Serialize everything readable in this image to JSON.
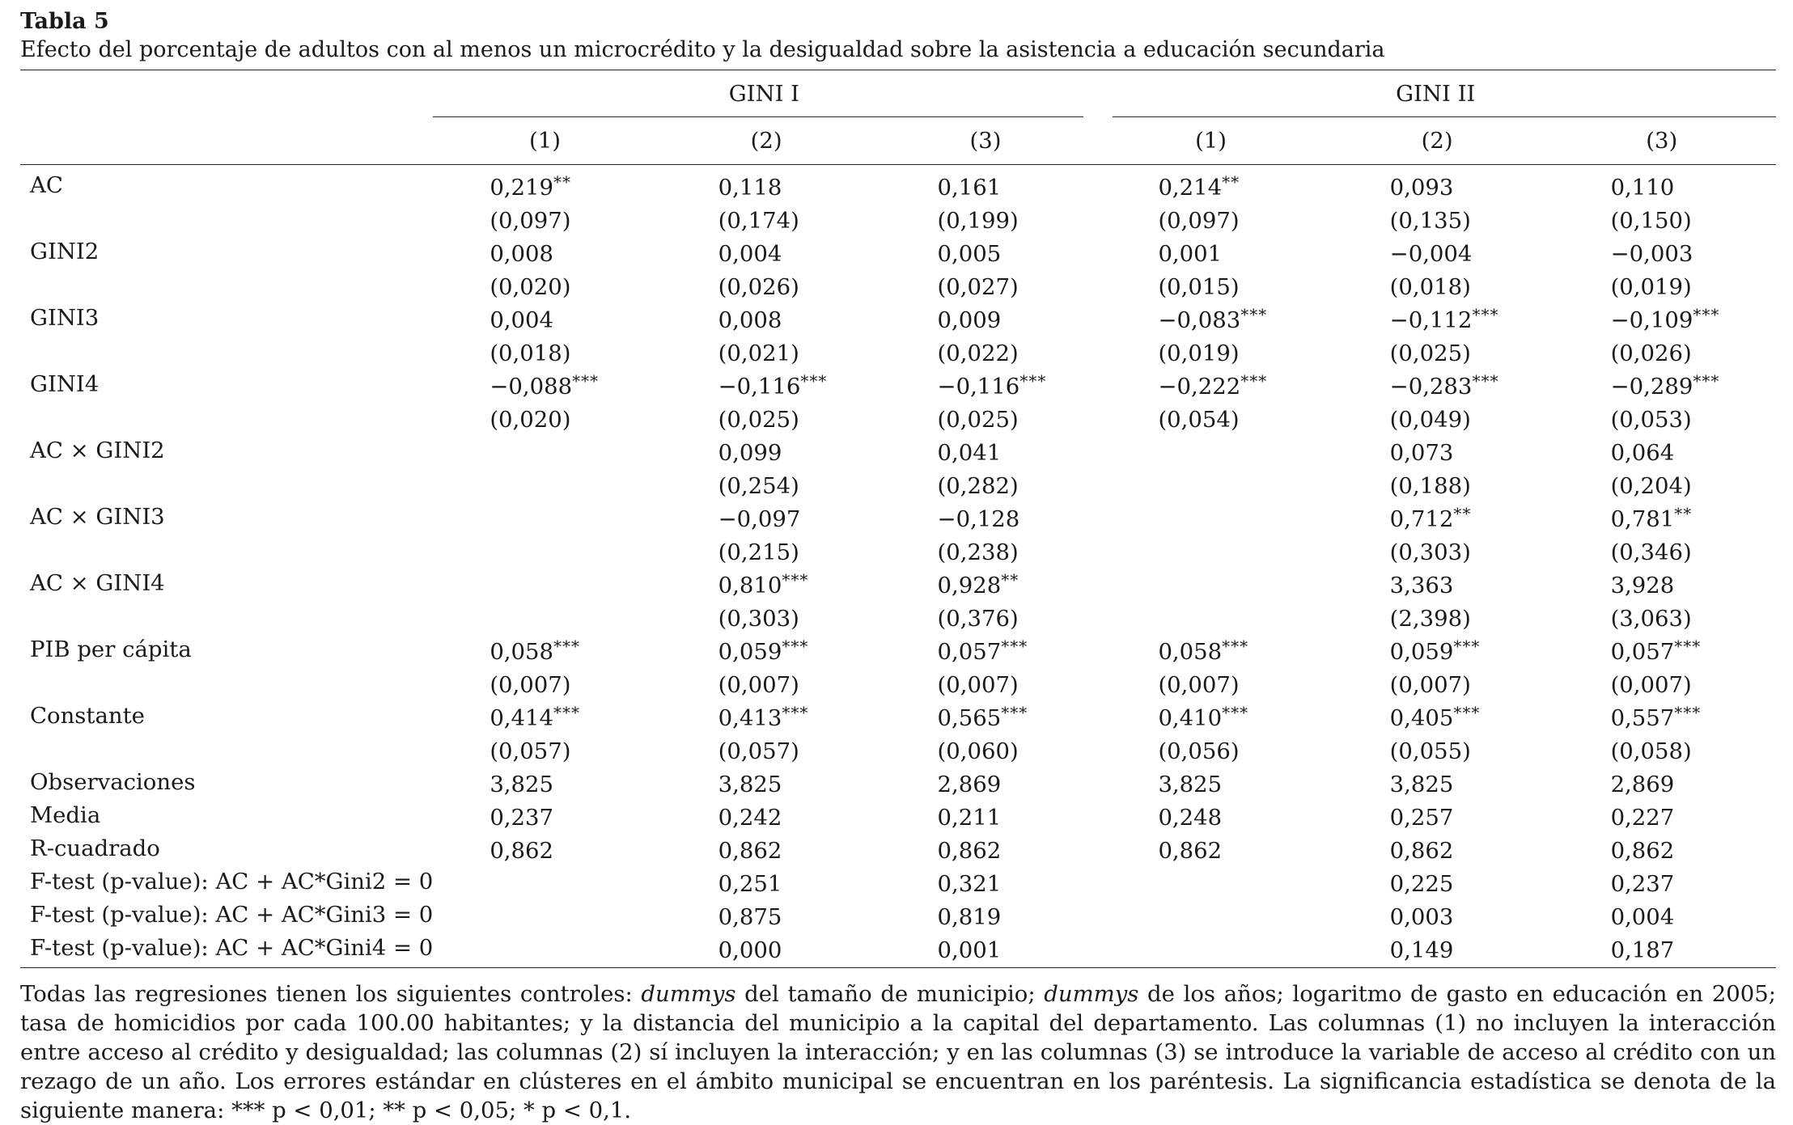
{
  "title": "Tabla 5",
  "subtitle": "Efecto del porcentaje de adultos con al menos un microcrédito y la desigualdad sobre la asistencia a educación secundaria",
  "groups": [
    "GINI I",
    "GINI II"
  ],
  "col_labels": [
    "(1)",
    "(2)",
    "(3)",
    "(1)",
    "(2)",
    "(3)"
  ],
  "rows": [
    {
      "label": "AC",
      "cells": [
        [
          "0,219",
          "**"
        ],
        [
          "0,118",
          ""
        ],
        [
          "0,161",
          ""
        ],
        [
          "0,214",
          "**"
        ],
        [
          "0,093",
          ""
        ],
        [
          "0,110",
          ""
        ]
      ]
    },
    {
      "label": "",
      "cells": [
        [
          "(0,097)",
          ""
        ],
        [
          "(0,174)",
          ""
        ],
        [
          "(0,199)",
          ""
        ],
        [
          "(0,097)",
          ""
        ],
        [
          "(0,135)",
          ""
        ],
        [
          "(0,150)",
          ""
        ]
      ]
    },
    {
      "label": "GINI2",
      "cells": [
        [
          "0,008",
          ""
        ],
        [
          "0,004",
          ""
        ],
        [
          "0,005",
          ""
        ],
        [
          "0,001",
          ""
        ],
        [
          "−0,004",
          ""
        ],
        [
          "−0,003",
          ""
        ]
      ]
    },
    {
      "label": "",
      "cells": [
        [
          "(0,020)",
          ""
        ],
        [
          "(0,026)",
          ""
        ],
        [
          "(0,027)",
          ""
        ],
        [
          "(0,015)",
          ""
        ],
        [
          "(0,018)",
          ""
        ],
        [
          "(0,019)",
          ""
        ]
      ]
    },
    {
      "label": "GINI3",
      "cells": [
        [
          "0,004",
          ""
        ],
        [
          "0,008",
          ""
        ],
        [
          "0,009",
          ""
        ],
        [
          "−0,083",
          "***"
        ],
        [
          "−0,112",
          "***"
        ],
        [
          "−0,109",
          "***"
        ]
      ]
    },
    {
      "label": "",
      "cells": [
        [
          "(0,018)",
          ""
        ],
        [
          "(0,021)",
          ""
        ],
        [
          "(0,022)",
          ""
        ],
        [
          "(0,019)",
          ""
        ],
        [
          "(0,025)",
          ""
        ],
        [
          "(0,026)",
          ""
        ]
      ]
    },
    {
      "label": "GINI4",
      "cells": [
        [
          "−0,088",
          "***"
        ],
        [
          "−0,116",
          "***"
        ],
        [
          "−0,116",
          "***"
        ],
        [
          "−0,222",
          "***"
        ],
        [
          "−0,283",
          "***"
        ],
        [
          "−0,289",
          "***"
        ]
      ]
    },
    {
      "label": "",
      "cells": [
        [
          "(0,020)",
          ""
        ],
        [
          "(0,025)",
          ""
        ],
        [
          "(0,025)",
          ""
        ],
        [
          "(0,054)",
          ""
        ],
        [
          "(0,049)",
          ""
        ],
        [
          "(0,053)",
          ""
        ]
      ]
    },
    {
      "label": "AC × GINI2",
      "cells": [
        [
          "",
          ""
        ],
        [
          "0,099",
          ""
        ],
        [
          "0,041",
          ""
        ],
        [
          "",
          ""
        ],
        [
          "0,073",
          ""
        ],
        [
          "0,064",
          ""
        ]
      ]
    },
    {
      "label": "",
      "cells": [
        [
          "",
          ""
        ],
        [
          "(0,254)",
          ""
        ],
        [
          "(0,282)",
          ""
        ],
        [
          "",
          ""
        ],
        [
          "(0,188)",
          ""
        ],
        [
          "(0,204)",
          ""
        ]
      ]
    },
    {
      "label": "AC × GINI3",
      "cells": [
        [
          "",
          ""
        ],
        [
          "−0,097",
          ""
        ],
        [
          "−0,128",
          ""
        ],
        [
          "",
          ""
        ],
        [
          "0,712",
          "**"
        ],
        [
          "0,781",
          "**"
        ]
      ]
    },
    {
      "label": "",
      "cells": [
        [
          "",
          ""
        ],
        [
          "(0,215)",
          ""
        ],
        [
          "(0,238)",
          ""
        ],
        [
          "",
          ""
        ],
        [
          "(0,303)",
          ""
        ],
        [
          "(0,346)",
          ""
        ]
      ]
    },
    {
      "label": "AC × GINI4",
      "cells": [
        [
          "",
          ""
        ],
        [
          "0,810",
          "***"
        ],
        [
          "0,928",
          "**"
        ],
        [
          "",
          ""
        ],
        [
          "3,363",
          ""
        ],
        [
          "3,928",
          ""
        ]
      ]
    },
    {
      "label": "",
      "cells": [
        [
          "",
          ""
        ],
        [
          "(0,303)",
          ""
        ],
        [
          "(0,376)",
          ""
        ],
        [
          "",
          ""
        ],
        [
          "(2,398)",
          ""
        ],
        [
          "(3,063)",
          ""
        ]
      ]
    },
    {
      "label": "PIB per cápita",
      "cells": [
        [
          "0,058",
          "***"
        ],
        [
          "0,059",
          "***"
        ],
        [
          "0,057",
          "***"
        ],
        [
          "0,058",
          "***"
        ],
        [
          "0,059",
          "***"
        ],
        [
          "0,057",
          "***"
        ]
      ]
    },
    {
      "label": "",
      "cells": [
        [
          "(0,007)",
          ""
        ],
        [
          "(0,007)",
          ""
        ],
        [
          "(0,007)",
          ""
        ],
        [
          "(0,007)",
          ""
        ],
        [
          "(0,007)",
          ""
        ],
        [
          "(0,007)",
          ""
        ]
      ]
    },
    {
      "label": "Constante",
      "cells": [
        [
          "0,414",
          "***"
        ],
        [
          "0,413",
          "***"
        ],
        [
          "0,565",
          "***"
        ],
        [
          "0,410",
          "***"
        ],
        [
          "0,405",
          "***"
        ],
        [
          "0,557",
          "***"
        ]
      ]
    },
    {
      "label": "",
      "cells": [
        [
          "(0,057)",
          ""
        ],
        [
          "(0,057)",
          ""
        ],
        [
          "(0,060)",
          ""
        ],
        [
          "(0,056)",
          ""
        ],
        [
          "(0,055)",
          ""
        ],
        [
          "(0,058)",
          ""
        ]
      ]
    },
    {
      "label": "Observaciones",
      "cells": [
        [
          "3,825",
          ""
        ],
        [
          "3,825",
          ""
        ],
        [
          "2,869",
          ""
        ],
        [
          "3,825",
          ""
        ],
        [
          "3,825",
          ""
        ],
        [
          "2,869",
          ""
        ]
      ]
    },
    {
      "label": "Media",
      "cells": [
        [
          "0,237",
          ""
        ],
        [
          "0,242",
          ""
        ],
        [
          "0,211",
          ""
        ],
        [
          "0,248",
          ""
        ],
        [
          "0,257",
          ""
        ],
        [
          "0,227",
          ""
        ]
      ]
    },
    {
      "label": "R-cuadrado",
      "cells": [
        [
          "0,862",
          ""
        ],
        [
          "0,862",
          ""
        ],
        [
          "0,862",
          ""
        ],
        [
          "0,862",
          ""
        ],
        [
          "0,862",
          ""
        ],
        [
          "0,862",
          ""
        ]
      ]
    },
    {
      "label": "F-test (p-value): AC + AC*Gini2 = 0",
      "cells": [
        [
          "",
          ""
        ],
        [
          "0,251",
          ""
        ],
        [
          "0,321",
          ""
        ],
        [
          "",
          ""
        ],
        [
          "0,225",
          ""
        ],
        [
          "0,237",
          ""
        ]
      ]
    },
    {
      "label": "F-test (p-value): AC + AC*Gini3 = 0",
      "cells": [
        [
          "",
          ""
        ],
        [
          "0,875",
          ""
        ],
        [
          "0,819",
          ""
        ],
        [
          "",
          ""
        ],
        [
          "0,003",
          ""
        ],
        [
          "0,004",
          ""
        ]
      ]
    },
    {
      "label": "F-test (p-value): AC + AC*Gini4 = 0",
      "cells": [
        [
          "",
          ""
        ],
        [
          "0,000",
          ""
        ],
        [
          "0,001",
          ""
        ],
        [
          "",
          ""
        ],
        [
          "0,149",
          ""
        ],
        [
          "0,187",
          ""
        ]
      ]
    }
  ],
  "note": {
    "p1": "Todas las regresiones tienen los siguientes controles: ",
    "i1": "dummys",
    "p2": " del tamaño de municipio; ",
    "i2": "dummys",
    "p3": " de los años; logaritmo de gasto en educación en 2005; tasa de homicidios por cada 100.00 habitantes; y la distancia del municipio a la capital del departamento. Las columnas (1) no incluyen la interacción entre acceso al crédito y desigualdad; las columnas (2) sí incluyen la interacción; y en las columnas (3) se introduce la variable de acceso al crédito con un rezago de un año. Los errores estándar en clústeres en el ámbito municipal se encuentran en los paréntesis. La significancia estadística se denota de la siguiente manera: *** p < 0,01; ** p < 0,05; * p < 0,1."
  }
}
